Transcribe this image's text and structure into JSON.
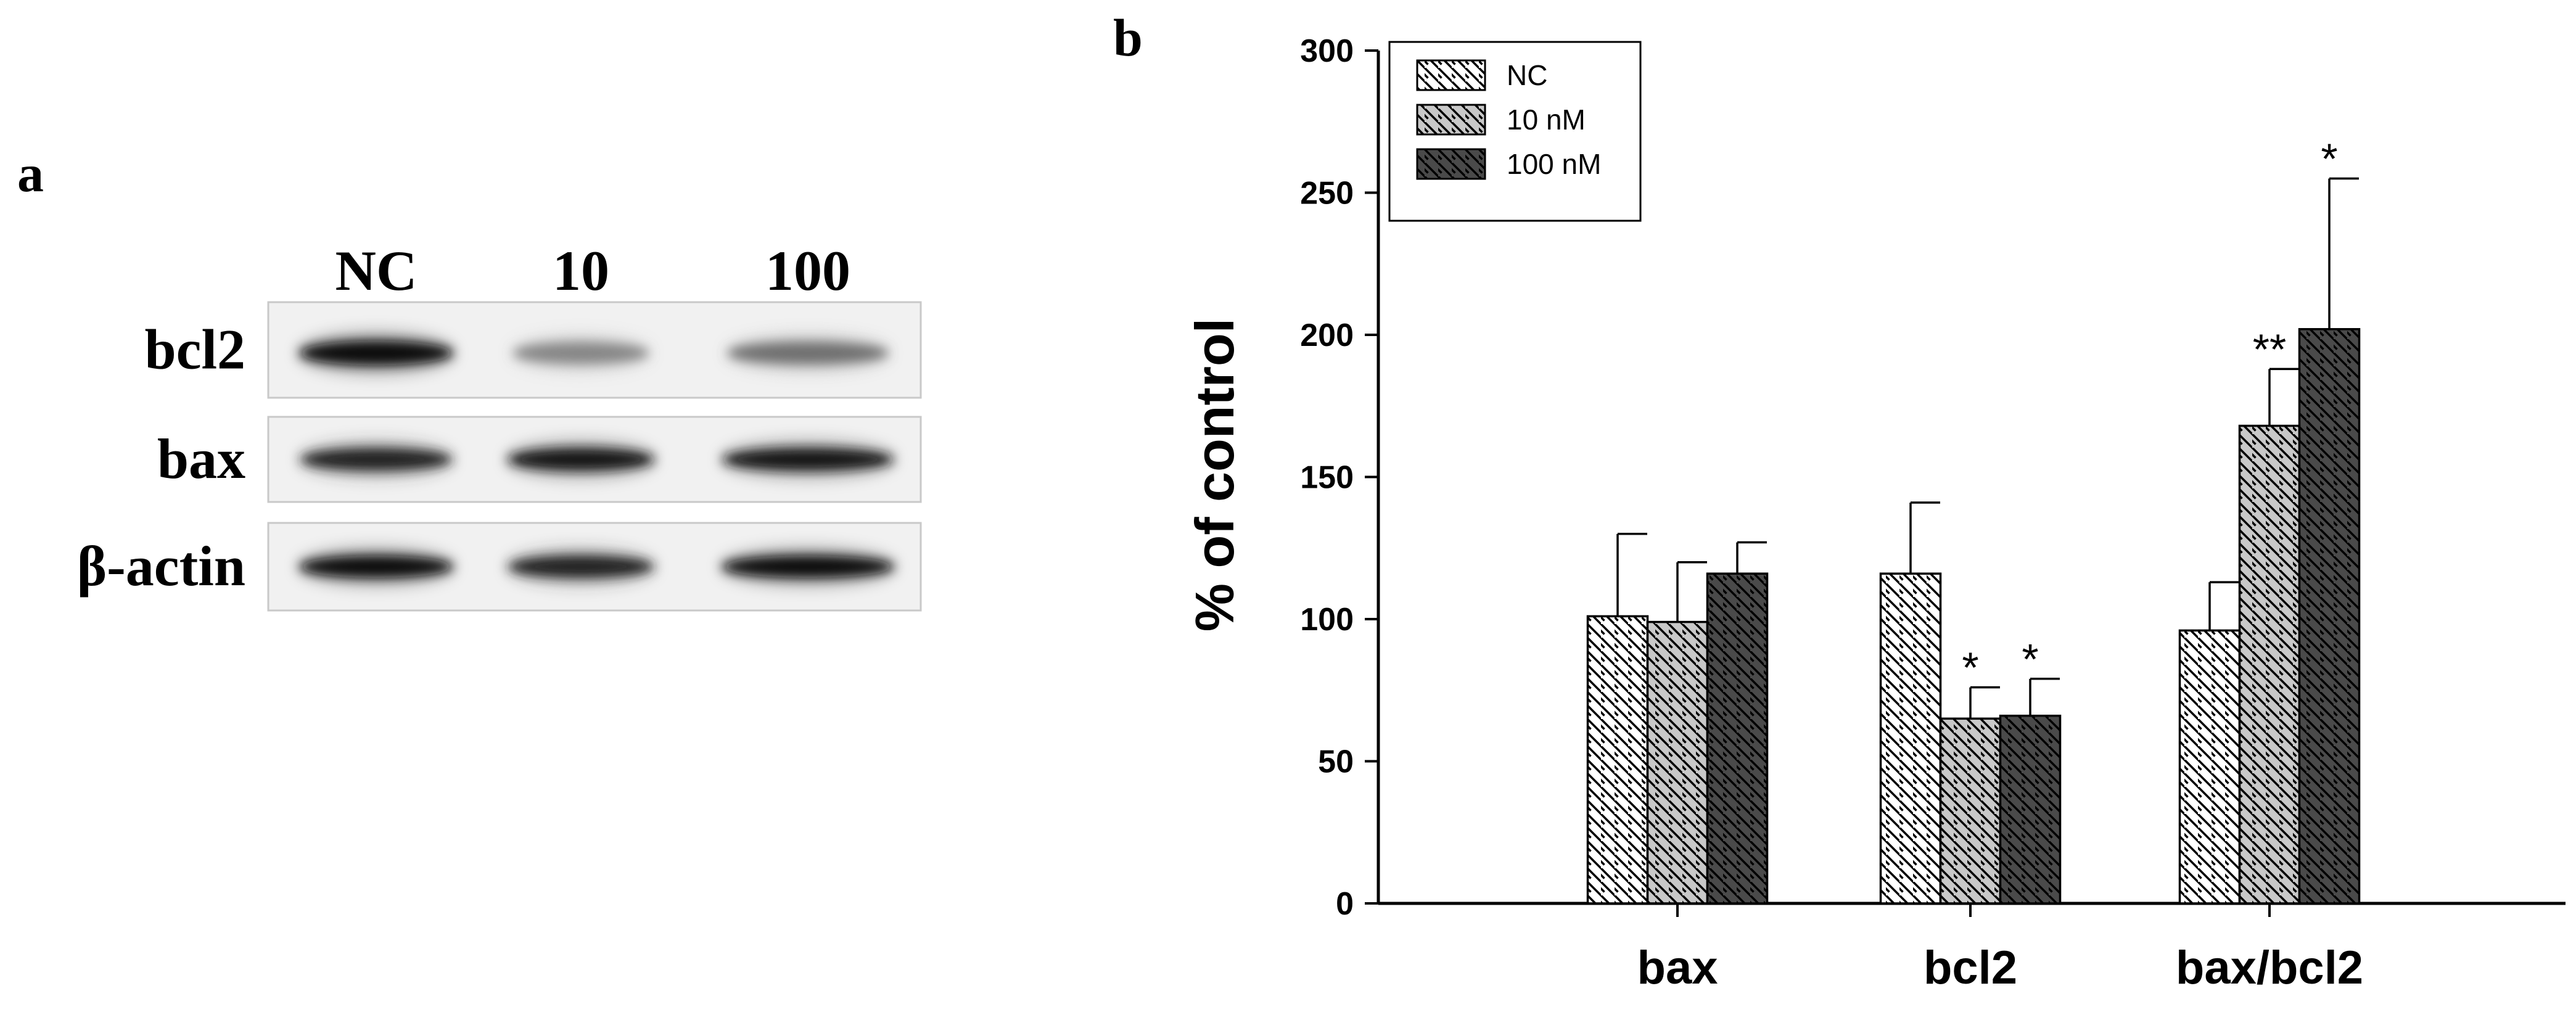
{
  "panels": {
    "a": "a",
    "b": "b"
  },
  "blot": {
    "lanes": [
      "NC",
      "10",
      "100"
    ],
    "rows": [
      {
        "label": "bcl2",
        "band_intensity": [
          1.0,
          0.45,
          0.55
        ]
      },
      {
        "label": "bax",
        "band_intensity": [
          0.9,
          0.95,
          0.95
        ]
      },
      {
        "label": "β-actin",
        "band_intensity": [
          1.0,
          0.9,
          1.0
        ]
      }
    ]
  },
  "chart_data": {
    "type": "bar",
    "categories": [
      "bax",
      "bcl2",
      "bax/bcl2"
    ],
    "ylabel": "% of control",
    "ylim": [
      0,
      300
    ],
    "yticks": [
      0,
      50,
      100,
      150,
      200,
      250,
      300
    ],
    "legend_position": "top-left",
    "series": [
      {
        "name": "NC",
        "values": [
          101,
          116,
          96
        ],
        "errors": [
          29,
          25,
          17
        ],
        "annotations": [
          "",
          "",
          ""
        ],
        "pattern": "hatch-light",
        "color": "#ffffff"
      },
      {
        "name": "10 nM",
        "values": [
          99,
          65,
          168
        ],
        "errors": [
          21,
          11,
          20
        ],
        "annotations": [
          "",
          "*",
          "**"
        ],
        "pattern": "hatch-medium",
        "color": "#c8c8c8"
      },
      {
        "name": "100 nM",
        "values": [
          116,
          66,
          202
        ],
        "errors": [
          11,
          13,
          53
        ],
        "annotations": [
          "",
          "*",
          "*"
        ],
        "pattern": "hatch-dark",
        "color": "#4a4a4a"
      }
    ]
  }
}
